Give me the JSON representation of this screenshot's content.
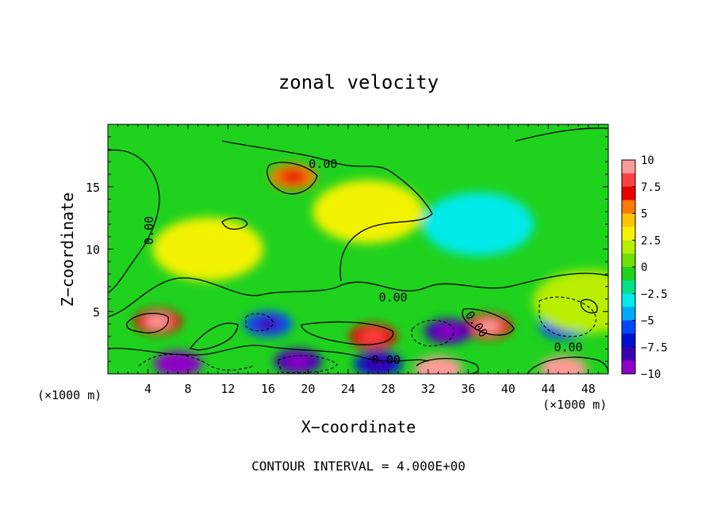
{
  "chart_data": {
    "type": "heatmap",
    "title": "zonal velocity",
    "xlabel": "X−coordinate",
    "ylabel": "Z−coordinate",
    "x_unit_left": "(×1000 m)",
    "x_unit_right": "(×1000 m)",
    "xlim": [
      0,
      50
    ],
    "ylim": [
      0,
      20
    ],
    "x_ticks": [
      4,
      8,
      12,
      16,
      20,
      24,
      28,
      32,
      36,
      40,
      44,
      48
    ],
    "y_ticks": [
      5,
      10,
      15
    ],
    "colorbar": {
      "ticks": [
        "10",
        "7.5",
        "5",
        "2.5",
        "0",
        "−2.5",
        "−5",
        "−7.5",
        "−10"
      ],
      "colors": [
        "#ff9a9a",
        "#ff4040",
        "#e60000",
        "#ff7a00",
        "#ffc400",
        "#f2f200",
        "#b8ee00",
        "#6fe000",
        "#1ed21e",
        "#00e28a",
        "#00eaea",
        "#00a8ff",
        "#0048ff",
        "#0010d0",
        "#3a00b0",
        "#8e00c8"
      ]
    },
    "contour_labels": [
      "0.00",
      "0.00",
      "0.00",
      "0.00",
      "0.00",
      "0.00"
    ],
    "contour_interval_text": "CONTOUR INTERVAL = 4.000E+00",
    "field_features": [
      {
        "x": 18.5,
        "z": 15.8,
        "value": 5.5
      },
      {
        "x": 5.0,
        "z": 4.2,
        "value": 7.5
      },
      {
        "x": 26.5,
        "z": 3.0,
        "value": 6.5
      },
      {
        "x": 38.0,
        "z": 3.8,
        "value": 7.0
      },
      {
        "x": 33.0,
        "z": 0.4,
        "value": 9.5
      },
      {
        "x": 45.5,
        "z": 0.4,
        "value": 10.0
      },
      {
        "x": 34.0,
        "z": 3.4,
        "value": -8.5
      },
      {
        "x": 7.0,
        "z": 0.8,
        "value": -9.0
      },
      {
        "x": 19.0,
        "z": 1.0,
        "value": -7.5
      },
      {
        "x": 27.0,
        "z": 0.8,
        "value": -6.5
      },
      {
        "x": 45.5,
        "z": 3.8,
        "value": -5.5
      },
      {
        "x": 16.0,
        "z": 4.0,
        "value": -5.5
      },
      {
        "x": 37.0,
        "z": 12.0,
        "value": -2.5
      },
      {
        "x": 10.0,
        "z": 10.0,
        "value": 3.0
      },
      {
        "x": 26.0,
        "z": 13.0,
        "value": 2.8
      },
      {
        "x": 48.0,
        "z": 5.8,
        "value": 2.5
      }
    ]
  }
}
